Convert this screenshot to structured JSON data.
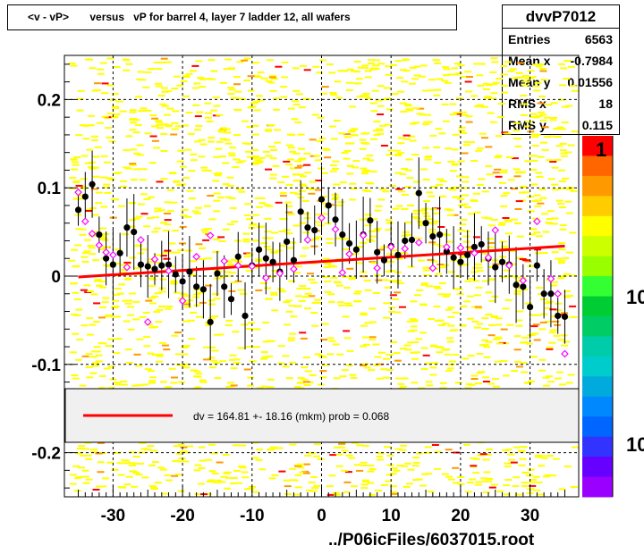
{
  "title": "<v - vP>       versus   vP for barrel 4, layer 7 ladder 12, all wafers",
  "stats": {
    "name": "dvvP7012",
    "rows": [
      {
        "key": "Entries",
        "value": "6563"
      },
      {
        "key": "Mean x",
        "value": "-0.7984"
      },
      {
        "key": "Mean y",
        "value": "0.01556"
      },
      {
        "key": "RMS x",
        "value": "18"
      },
      {
        "key": "RMS y",
        "value": "0.115"
      }
    ]
  },
  "fit_legend": "dv =  164.81 +- 18.16 (mkm) prob = 0.068",
  "footer": "../P06icFiles/6037015.root",
  "palette_labels": [
    "1",
    "10",
    "10"
  ],
  "colors": {
    "fit_line": "#ff0000",
    "black_points": "#000000",
    "open_points": "#ff00ff",
    "density_low": "#ffff00",
    "density_mid": "#ff9900",
    "legend_bg": "#f0f0f0"
  },
  "chart_data": {
    "type": "scatter",
    "xlim": [
      -37,
      37
    ],
    "ylim": [
      -0.25,
      0.25
    ],
    "xticks": [
      -30,
      -20,
      -10,
      0,
      10,
      20,
      30
    ],
    "yticks": [
      -0.2,
      -0.1,
      0,
      0.1,
      0.2
    ],
    "xtick_labels": [
      "-30",
      "-20",
      "-10",
      "0",
      "10",
      "20",
      "30"
    ],
    "ytick_labels": [
      "-0.2",
      "-0.1",
      "0",
      "0.1",
      "0.2"
    ],
    "grid": true,
    "fit_line": {
      "x": [
        -35,
        35
      ],
      "y": [
        -0.001,
        0.034
      ]
    },
    "profile_points": [
      [
        -35,
        0.075
      ],
      [
        -34,
        0.09
      ],
      [
        -33,
        0.104
      ],
      [
        -32,
        0.047
      ],
      [
        -31,
        0.02
      ],
      [
        -30,
        0.013
      ],
      [
        -29,
        0.026
      ],
      [
        -28,
        0.055
      ],
      [
        -27,
        0.05
      ],
      [
        -26,
        0.013
      ],
      [
        -25,
        0.011
      ],
      [
        -24,
        0.008
      ],
      [
        -23,
        0.012
      ],
      [
        -22,
        0.013
      ],
      [
        -21,
        0.002
      ],
      [
        -20,
        -0.006
      ],
      [
        -19,
        0.005
      ],
      [
        -18,
        -0.012
      ],
      [
        -17,
        -0.015
      ],
      [
        -16,
        -0.052
      ],
      [
        -15,
        0.003
      ],
      [
        -14,
        -0.012
      ],
      [
        -13,
        -0.026
      ],
      [
        -12,
        0.022
      ],
      [
        -11,
        -0.045
      ],
      [
        -10,
        0.012
      ],
      [
        -9,
        0.03
      ],
      [
        -8,
        0.02
      ],
      [
        -7,
        0.016
      ],
      [
        -6,
        0.005
      ],
      [
        -5,
        0.039
      ],
      [
        -4,
        0.018
      ],
      [
        -3,
        0.073
      ],
      [
        -2,
        0.055
      ],
      [
        -1,
        0.052
      ],
      [
        0,
        0.087
      ],
      [
        1,
        0.08
      ],
      [
        2,
        0.064
      ],
      [
        3,
        0.047
      ],
      [
        4,
        0.037
      ],
      [
        5,
        0.03
      ],
      [
        6,
        0.047
      ],
      [
        7,
        0.063
      ],
      [
        8,
        0.027
      ],
      [
        9,
        0.018
      ],
      [
        10,
        0.034
      ],
      [
        11,
        0.024
      ],
      [
        12,
        0.04
      ],
      [
        13,
        0.041
      ],
      [
        14,
        0.094
      ],
      [
        15,
        0.06
      ],
      [
        16,
        0.045
      ],
      [
        17,
        0.047
      ],
      [
        18,
        0.028
      ],
      [
        19,
        0.021
      ],
      [
        20,
        0.016
      ],
      [
        21,
        0.024
      ],
      [
        22,
        0.033
      ],
      [
        23,
        0.036
      ],
      [
        24,
        0.02
      ],
      [
        25,
        0.01
      ],
      [
        26,
        0.016
      ],
      [
        27,
        0.013
      ],
      [
        28,
        -0.01
      ],
      [
        29,
        -0.012
      ],
      [
        30,
        -0.035
      ],
      [
        31,
        0.012
      ],
      [
        32,
        -0.02
      ],
      [
        33,
        -0.02
      ],
      [
        34,
        -0.045
      ],
      [
        35,
        -0.046
      ]
    ],
    "open_points": [
      [
        -35,
        0.095
      ],
      [
        -34,
        0.062
      ],
      [
        -33,
        0.048
      ],
      [
        -32,
        0.035
      ],
      [
        -31,
        0.027
      ],
      [
        -30,
        0.024
      ],
      [
        -28,
        0.01
      ],
      [
        -26,
        0.041
      ],
      [
        -25,
        -0.052
      ],
      [
        -24,
        0.019
      ],
      [
        -22,
        0.006
      ],
      [
        -20,
        -0.028
      ],
      [
        -18,
        0.022
      ],
      [
        -16,
        0.046
      ],
      [
        -14,
        0.017
      ],
      [
        -12,
        0.012
      ],
      [
        -10,
        0.011
      ],
      [
        -8,
        -0.002
      ],
      [
        -6,
        0.003
      ],
      [
        -4,
        0.008
      ],
      [
        -2,
        0.041
      ],
      [
        0,
        0.066
      ],
      [
        2,
        0.053
      ],
      [
        3,
        0.004
      ],
      [
        4,
        0.025
      ],
      [
        6,
        0.046
      ],
      [
        8,
        0.009
      ],
      [
        10,
        0.033
      ],
      [
        12,
        0.031
      ],
      [
        14,
        0.038
      ],
      [
        16,
        0.009
      ],
      [
        18,
        0.033
      ],
      [
        20,
        0.032
      ],
      [
        22,
        0.026
      ],
      [
        24,
        0.021
      ],
      [
        25,
        0.052
      ],
      [
        27,
        0.012
      ],
      [
        29,
        -0.005
      ],
      [
        31,
        0.062
      ],
      [
        33,
        -0.003
      ],
      [
        34,
        -0.02
      ],
      [
        35,
        -0.088
      ]
    ]
  }
}
